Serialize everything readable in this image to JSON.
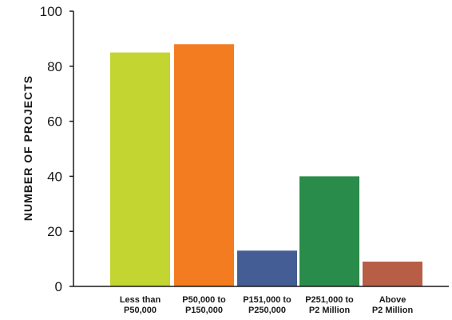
{
  "chart_data": {
    "type": "bar",
    "title": "",
    "xlabel": "",
    "ylabel": "NUMBER OF PROJECTS",
    "ylim": [
      0,
      100
    ],
    "yticks": [
      0,
      20,
      40,
      60,
      80,
      100
    ],
    "grid": false,
    "legend": "none",
    "categories": [
      [
        "Less than",
        "P50,000"
      ],
      [
        "P50,000 to",
        "P150,000"
      ],
      [
        "P151,000 to",
        "P250,000"
      ],
      [
        "P251,000 to",
        "P2 Million"
      ],
      [
        "Above",
        "P2 Million"
      ]
    ],
    "values": [
      85,
      88,
      13,
      40,
      9
    ],
    "colors": [
      "#c3d531",
      "#f47c20",
      "#445e95",
      "#2a8c4a",
      "#b85e47"
    ]
  }
}
